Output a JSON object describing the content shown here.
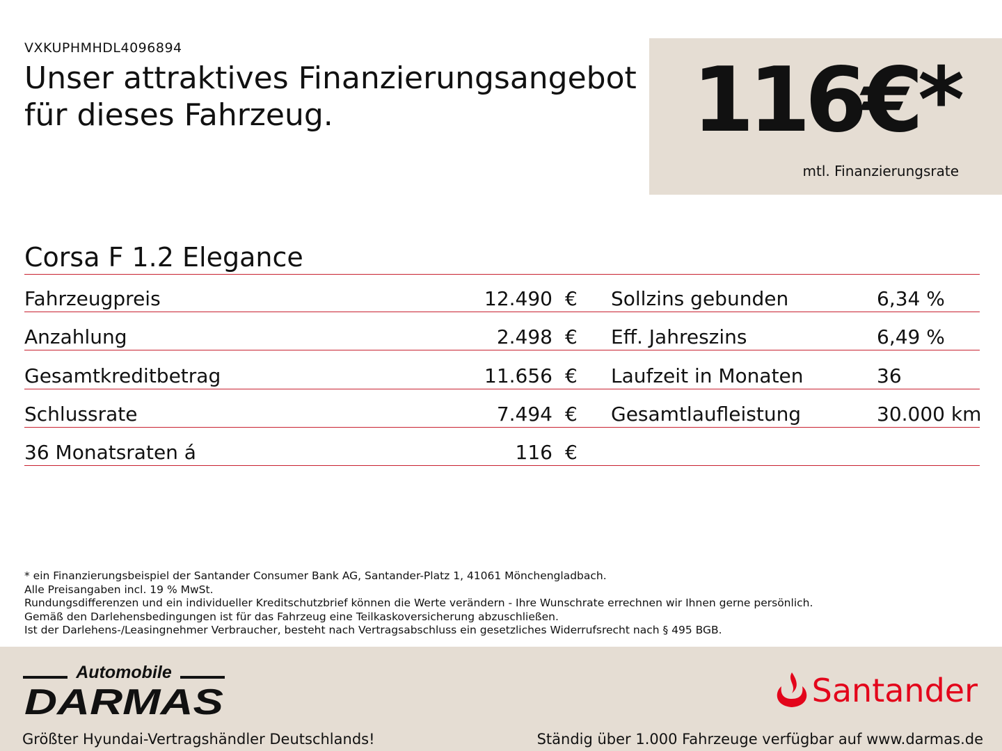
{
  "vin": "VXKUPHMHDL4096894",
  "headline": "Unser attraktives Finanzierungsangebot für dieses Fahrzeug.",
  "rate": {
    "value": "116€*",
    "label": "mtl. Finanzierungsrate"
  },
  "model": "Corsa F 1.2 Elegance",
  "left_rows": [
    {
      "label": "Fahrzeugpreis",
      "value": "12.490",
      "unit": "€"
    },
    {
      "label": "Anzahlung",
      "value": "2.498",
      "unit": "€"
    },
    {
      "label": "Gesamtkreditbetrag",
      "value": "11.656",
      "unit": "€"
    },
    {
      "label": "Schlussrate",
      "value": "7.494",
      "unit": "€"
    },
    {
      "label": "36 Monatsraten á",
      "value": "116",
      "unit": "€"
    }
  ],
  "right_rows": [
    {
      "label": "Sollzins gebunden",
      "value": "6,34 %"
    },
    {
      "label": "Eff. Jahreszins",
      "value": "6,49 %"
    },
    {
      "label": "Laufzeit in Monaten",
      "value": "36"
    },
    {
      "label": "Gesamtlaufleistung",
      "value": "30.000 km"
    }
  ],
  "footnotes": [
    "* ein Finanzierungsbeispiel der Santander Consumer Bank AG, Santander-Platz 1, 41061 Mönchengladbach.",
    "Alle Preisangaben incl. 19 % MwSt.",
    "Rundungsdifferenzen und ein individueller Kreditschutzbrief können die Werte verändern - Ihre Wunschrate errechnen wir Ihnen gerne persönlich.",
    "Gemäß den Darlehensbedingungen ist für das Fahrzeug eine Teilkaskoversicherung abzuschließen.",
    "Ist der Darlehens-/Leasingnehmer Verbraucher, besteht nach Vertragsabschluss ein gesetzliches Widerrufsrecht nach § 495 BGB."
  ],
  "footer": {
    "dealer_logo_top": "Automobile",
    "dealer_logo_main": "DARMAS",
    "bank_logo": "Santander",
    "tagline_left": "Größter Hyundai-Vertragshändler Deutschlands!",
    "tagline_right": "Ständig über 1.000 Fahrzeuge verfügbar auf www.darmas.de"
  },
  "colors": {
    "accent_line": "#c8202f",
    "box_bg": "#e5ddd3",
    "santander_red": "#e3051b"
  }
}
